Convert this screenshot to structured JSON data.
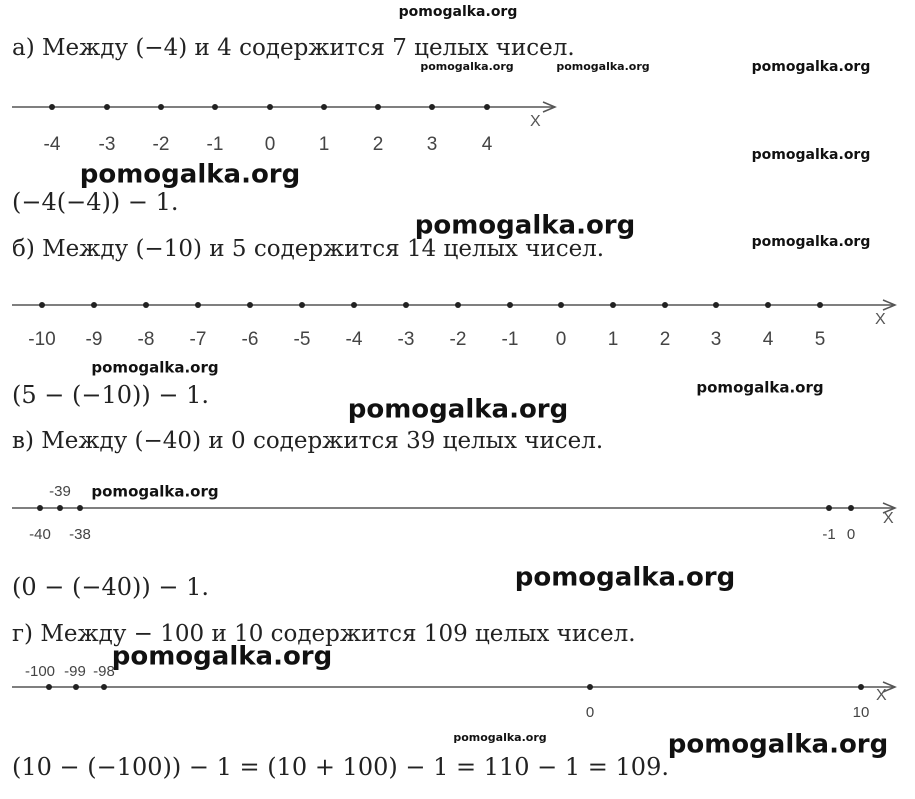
{
  "watermarks": [
    "pomogalka.org",
    "pomogalka.org",
    "pomogalka.org",
    "pomogalka.org",
    "pomogalka.org",
    "pomogalka.org",
    "pomogalka.org",
    "pomogalka.org",
    "pomogalka.org",
    "pomogalka.org",
    "pomogalka.org",
    "pomogalka.org",
    "pomogalka.org",
    "pomogalka.org",
    "pomogalka.org",
    "pomogalka.org"
  ],
  "sections": [
    {
      "heading": "а) Между (−4) и 4 содержится 7 целых чисел.",
      "axis_label": "X",
      "points": [
        "-4",
        "-3",
        "-2",
        "-1",
        "0",
        "1",
        "2",
        "3",
        "4"
      ],
      "formula": "(−4(−4)) − 1."
    },
    {
      "heading": "б) Между (−10) и 5 содержится 14 целых чисел.",
      "axis_label": "X",
      "points": [
        "-10",
        "-9",
        "-8",
        "-7",
        "-6",
        "-5",
        "-4",
        "-3",
        "-2",
        "-1",
        "0",
        "1",
        "2",
        "3",
        "4",
        "5"
      ],
      "formula": "(5 − (−10)) − 1."
    },
    {
      "heading": "в) Между (−40) и 0 содержится 39 целых чисел.",
      "axis_label": "X",
      "points": [
        "-40",
        "-39",
        "-38",
        "-1",
        "0"
      ],
      "formula": "(0 − (−40)) − 1."
    },
    {
      "heading": "г) Между − 100 и 10 содержится  109 целых чисел.",
      "axis_label": "X",
      "points": [
        "-100",
        "-99",
        "-98",
        "0",
        "10"
      ],
      "formula": "(10 − (−100)) − 1 = (10 + 100) − 1 = 110 − 1 = 109."
    }
  ]
}
